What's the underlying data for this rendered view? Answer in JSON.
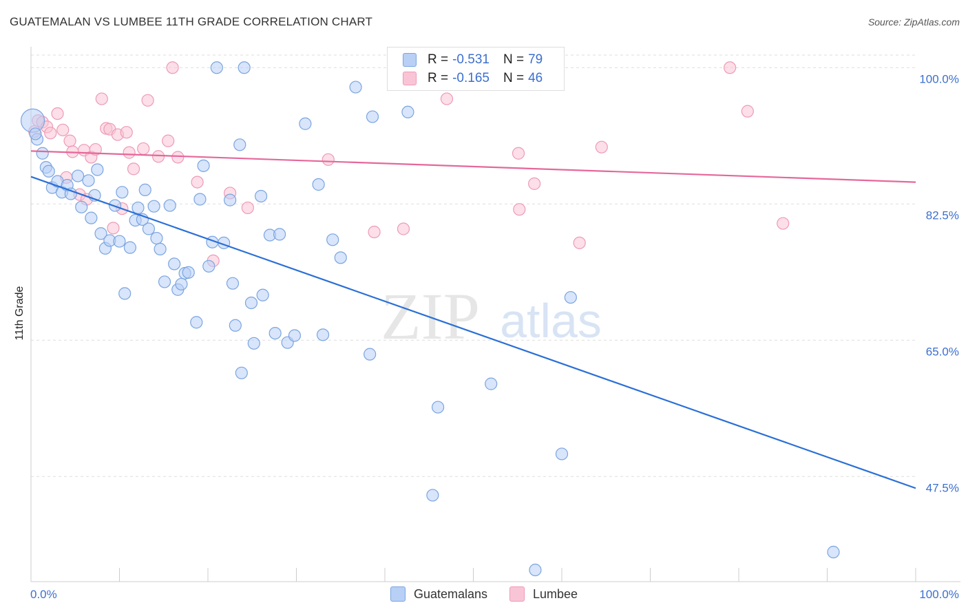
{
  "title": "GUATEMALAN VS LUMBEE 11TH GRADE CORRELATION CHART",
  "source": "Source: ZipAtlas.com",
  "watermark": {
    "zip": "ZIP",
    "atlas": "atlas"
  },
  "legend": {
    "r_label": "R =",
    "n_label": "N =",
    "rows": [
      {
        "r": "-0.531",
        "n": "79"
      },
      {
        "r": "-0.165",
        "n": "46"
      }
    ]
  },
  "colors": {
    "guatemalans_fill": "#b8d0f5",
    "guatemalans_stroke": "#7aa4e0",
    "guatemalans_line": "#2a6fd6",
    "lumbee_fill": "#f9c5d6",
    "lumbee_stroke": "#ee9ab5",
    "lumbee_line": "#e5679a",
    "tick_label": "#3b6fd0"
  },
  "chart_data": {
    "type": "scatter",
    "title": "GUATEMALAN VS LUMBEE 11TH GRADE CORRELATION CHART",
    "xlabel": "",
    "ylabel": "11th Grade",
    "xlim": [
      0,
      100
    ],
    "ylim": [
      34,
      102.5
    ],
    "x_tick_labels": [
      "0.0%",
      "100.0%"
    ],
    "y_ticks": [
      100.0,
      82.5,
      65.0,
      47.5
    ],
    "y_tick_labels": [
      "100.0%",
      "82.5%",
      "65.0%",
      "47.5%"
    ],
    "grid": true,
    "legend_position": "top-center",
    "series": [
      {
        "name": "Guatemalans",
        "trend": {
          "x": [
            0,
            100
          ],
          "y": [
            86.0,
            46.0
          ]
        },
        "points": [
          [
            0.2,
            93.2
          ],
          [
            0.7,
            90.8
          ],
          [
            1.3,
            89.0
          ],
          [
            1.7,
            87.2
          ],
          [
            2.0,
            86.7
          ],
          [
            2.4,
            84.6
          ],
          [
            3.0,
            85.4
          ],
          [
            3.5,
            84.0
          ],
          [
            4.1,
            84.9
          ],
          [
            4.5,
            83.8
          ],
          [
            5.3,
            86.1
          ],
          [
            5.7,
            82.1
          ],
          [
            6.5,
            85.5
          ],
          [
            6.8,
            80.7
          ],
          [
            7.2,
            83.6
          ],
          [
            7.5,
            86.9
          ],
          [
            7.9,
            78.7
          ],
          [
            8.4,
            76.8
          ],
          [
            8.9,
            77.8
          ],
          [
            9.5,
            82.3
          ],
          [
            10.0,
            77.7
          ],
          [
            10.3,
            84.0
          ],
          [
            10.6,
            71.0
          ],
          [
            11.2,
            76.9
          ],
          [
            11.8,
            80.4
          ],
          [
            12.1,
            82.0
          ],
          [
            12.6,
            80.5
          ],
          [
            12.9,
            84.3
          ],
          [
            13.3,
            79.3
          ],
          [
            13.9,
            82.2
          ],
          [
            14.2,
            78.1
          ],
          [
            14.6,
            76.7
          ],
          [
            15.1,
            72.5
          ],
          [
            15.7,
            82.3
          ],
          [
            16.2,
            74.8
          ],
          [
            16.6,
            71.5
          ],
          [
            17.0,
            72.2
          ],
          [
            17.4,
            73.6
          ],
          [
            17.8,
            73.7
          ],
          [
            18.7,
            67.3
          ],
          [
            19.1,
            83.1
          ],
          [
            19.5,
            87.4
          ],
          [
            20.1,
            74.5
          ],
          [
            20.5,
            77.6
          ],
          [
            21.0,
            100.0
          ],
          [
            21.8,
            77.5
          ],
          [
            22.5,
            83.0
          ],
          [
            22.8,
            72.3
          ],
          [
            23.1,
            66.9
          ],
          [
            23.6,
            90.1
          ],
          [
            23.8,
            60.8
          ],
          [
            24.1,
            100.0
          ],
          [
            24.9,
            69.8
          ],
          [
            25.2,
            64.6
          ],
          [
            26.0,
            83.5
          ],
          [
            26.2,
            70.8
          ],
          [
            27.0,
            78.5
          ],
          [
            27.6,
            65.9
          ],
          [
            28.1,
            78.6
          ],
          [
            29.0,
            64.7
          ],
          [
            29.8,
            65.6
          ],
          [
            31.0,
            92.8
          ],
          [
            32.5,
            85.0
          ],
          [
            33.0,
            65.7
          ],
          [
            34.1,
            77.9
          ],
          [
            35.0,
            75.6
          ],
          [
            36.7,
            97.5
          ],
          [
            38.3,
            63.2
          ],
          [
            38.6,
            93.7
          ],
          [
            42.6,
            94.3
          ],
          [
            45.4,
            45.1
          ],
          [
            46.0,
            56.4
          ],
          [
            52.0,
            59.4
          ],
          [
            57.0,
            35.5
          ],
          [
            58.5,
            100.0
          ],
          [
            60.0,
            50.4
          ],
          [
            61.0,
            70.5
          ],
          [
            90.7,
            37.8
          ],
          [
            0.5,
            91.5
          ]
        ]
      },
      {
        "name": "Lumbee",
        "trend": {
          "x": [
            0,
            100
          ],
          "y": [
            89.3,
            85.3
          ]
        },
        "points": [
          [
            0.4,
            91.8
          ],
          [
            0.8,
            93.2
          ],
          [
            1.3,
            93.0
          ],
          [
            1.8,
            92.4
          ],
          [
            2.2,
            91.6
          ],
          [
            3.0,
            94.1
          ],
          [
            3.6,
            92.0
          ],
          [
            4.0,
            85.9
          ],
          [
            4.4,
            90.6
          ],
          [
            4.7,
            89.2
          ],
          [
            5.5,
            83.7
          ],
          [
            6.0,
            89.4
          ],
          [
            6.3,
            83.1
          ],
          [
            6.8,
            88.5
          ],
          [
            7.3,
            89.5
          ],
          [
            8.0,
            96.0
          ],
          [
            8.5,
            92.2
          ],
          [
            8.9,
            92.1
          ],
          [
            9.3,
            79.4
          ],
          [
            9.8,
            91.4
          ],
          [
            10.3,
            81.9
          ],
          [
            10.8,
            91.7
          ],
          [
            11.1,
            89.1
          ],
          [
            11.6,
            87.0
          ],
          [
            12.7,
            89.6
          ],
          [
            13.2,
            95.8
          ],
          [
            14.4,
            88.6
          ],
          [
            15.5,
            90.6
          ],
          [
            16.6,
            88.5
          ],
          [
            18.8,
            85.3
          ],
          [
            20.6,
            75.2
          ],
          [
            22.5,
            83.9
          ],
          [
            24.5,
            82.0
          ],
          [
            16.0,
            100.0
          ],
          [
            33.6,
            88.2
          ],
          [
            38.8,
            78.9
          ],
          [
            42.1,
            79.3
          ],
          [
            47.0,
            96.0
          ],
          [
            55.1,
            89.0
          ],
          [
            55.2,
            81.8
          ],
          [
            56.9,
            85.1
          ],
          [
            62.0,
            77.5
          ],
          [
            64.5,
            89.8
          ],
          [
            79.0,
            100.0
          ],
          [
            81.0,
            94.4
          ],
          [
            85.0,
            80.0
          ]
        ]
      }
    ]
  },
  "bottom_legend": [
    "Guatemalans",
    "Lumbee"
  ]
}
